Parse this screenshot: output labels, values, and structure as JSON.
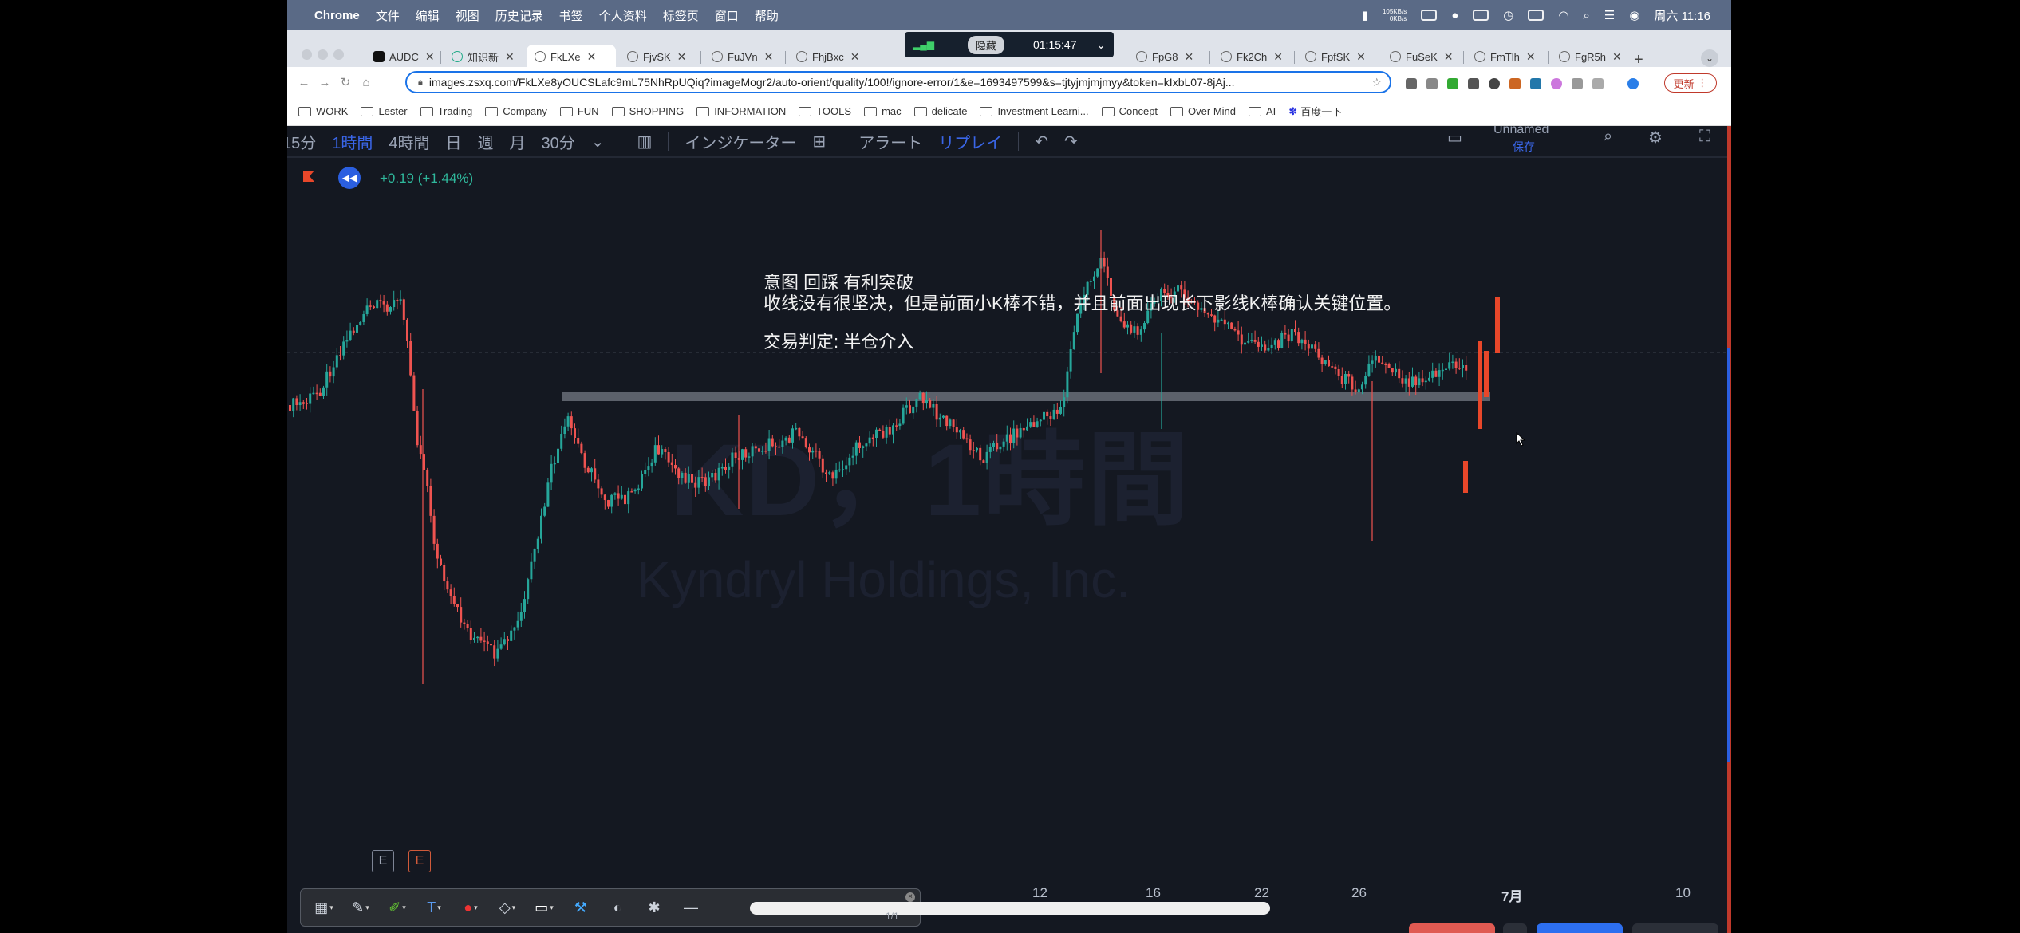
{
  "menubar": {
    "app_name": "Chrome",
    "items": [
      "文件",
      "编辑",
      "视图",
      "历史记录",
      "书签",
      "个人资料",
      "标签页",
      "窗口",
      "帮助"
    ],
    "net_up": "105KB/s",
    "net_down": "0KB/s",
    "clock": "周六 11:16"
  },
  "tabs": [
    {
      "label": "AUDC",
      "icon": "tradingview-icon"
    },
    {
      "label": "知识新",
      "icon": "globe-icon"
    },
    {
      "label": "FkLXe",
      "icon": "link-icon",
      "active": true
    },
    {
      "label": "FjvSK",
      "icon": "link-icon"
    },
    {
      "label": "FuJVn",
      "icon": "link-icon"
    },
    {
      "label": "FhjBxc",
      "icon": "link-icon"
    },
    {
      "label": "FpG8",
      "icon": "link-icon"
    },
    {
      "label": "Fk2Ch",
      "icon": "link-icon"
    },
    {
      "label": "FpfSK",
      "icon": "link-icon"
    },
    {
      "label": "FuSeK",
      "icon": "link-icon"
    },
    {
      "label": "FmTlh",
      "icon": "link-icon"
    },
    {
      "label": "FgR5h",
      "icon": "link-icon"
    }
  ],
  "address_bar": {
    "url": "images.zsxq.com/FkLXe8yOUCSLafc9mL75NhRpUQiq?imageMogr2/auto-orient/quality/100!/ignore-error/1&e=1693497599&s=tjtyjmjmjmyy&token=kIxbL07-8jAj..."
  },
  "update_button": "更新",
  "bookmarks": [
    "WORK",
    "Lester",
    "Trading",
    "Company",
    "FUN",
    "SHOPPING",
    "INFORMATION",
    "TOOLS",
    "mac",
    "delicate",
    "Investment Learni...",
    "Concept",
    "Over Mind",
    "AI",
    "百度一下"
  ],
  "recorder": {
    "hide_label": "隐藏",
    "elapsed": "01:15:47"
  },
  "tv_toolbar": {
    "items": [
      "15分",
      "1時間",
      "4時間",
      "日",
      "週",
      "月",
      "30分",
      "インジケーター",
      "アラート",
      "リプレイ"
    ],
    "layout_name": "Unnamed",
    "saved_label": "保存"
  },
  "chart": {
    "price_change": "+0.19 (+1.44%)",
    "watermark_title": "KD，1時間",
    "watermark_subtitle": "Kyndryl Holdings, Inc.",
    "note_line_1": "意图 回踩 有利突破",
    "note_line_2": "收线没有很坚决，但是前面小K棒不错，并且前面出现长下影线K棒确认关键位置。",
    "note_line_3": "交易判定: 半仓介入",
    "earnings_1": "E",
    "earnings_2": "E",
    "x_ticks": [
      "12",
      "16",
      "22",
      "26",
      "7月",
      "10"
    ],
    "colors": {
      "up": "#26a69a",
      "down": "#ef5350",
      "highlight": "#e8472a",
      "background": "#141821"
    }
  },
  "chart_data": {
    "type": "candlestick",
    "title": "KD，1時間",
    "subtitle": "Kyndryl Holdings, Inc.",
    "x_ticks": [
      "12",
      "16",
      "22",
      "26",
      "7月",
      "10"
    ],
    "series": [
      {
        "name": "KD",
        "trend": "spike high, sharp drop, range with support, breakout, pullback to support, bounce"
      }
    ],
    "grid": false
  },
  "bottom": {
    "page_indicator": "1/1"
  }
}
